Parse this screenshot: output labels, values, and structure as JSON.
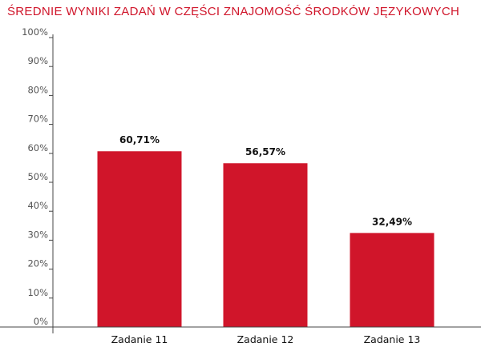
{
  "chart_data": {
    "type": "bar",
    "title": "ŚREDNIE WYNIKI ZADAŃ W CZĘŚCI ZNAJOMOŚĆ ŚRODKÓW JĘZYKOWYCH",
    "categories": [
      "Zadanie 11",
      "Zadanie 12",
      "Zadanie 13"
    ],
    "values": [
      60.71,
      56.57,
      32.49
    ],
    "data_labels": [
      "60,71%",
      "56,57%",
      "32,49%"
    ],
    "ylim": [
      0,
      100
    ],
    "yticks": [
      0,
      10,
      20,
      30,
      40,
      50,
      60,
      70,
      80,
      90,
      100
    ],
    "ytick_labels": [
      "0%",
      "10%",
      "20%",
      "30%",
      "40%",
      "50%",
      "60%",
      "70%",
      "80%",
      "90%",
      "100%"
    ],
    "xlabel": "",
    "ylabel": "",
    "grid": false,
    "legend": "none",
    "bar_color": "#d0152a",
    "title_color": "#d0152a"
  }
}
